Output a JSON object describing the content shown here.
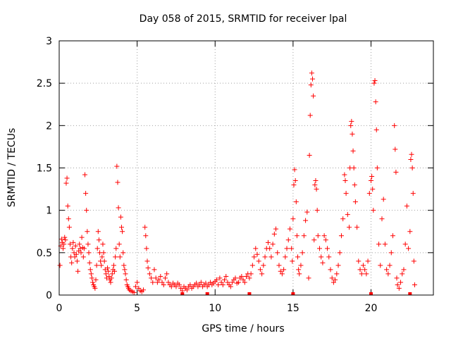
{
  "chart_data": {
    "type": "scatter",
    "title": "Day 058 of 2015, SRMTID for receiver lpal",
    "xlabel": "GPS time / hours",
    "ylabel": "SRMTID / TECUs",
    "xlim": [
      0,
      24
    ],
    "ylim": [
      0,
      3
    ],
    "xticks": [
      0,
      5,
      10,
      15,
      20
    ],
    "xtick_labels": [
      "0",
      "5",
      "10",
      "15",
      "20"
    ],
    "yticks": [
      0,
      0.5,
      1,
      1.5,
      2,
      2.5,
      3
    ],
    "ytick_labels": [
      "0",
      "0.5",
      "1",
      "1.5",
      "2",
      "2.5",
      "3"
    ],
    "grid": true,
    "marker": "+",
    "series_color": "#ff0000",
    "gap_marker_times": [
      7.9,
      9.5,
      12.2,
      15.0,
      20.0,
      22.5
    ],
    "series": [
      {
        "name": "SRMTID",
        "points": [
          [
            0.05,
            0.35
          ],
          [
            0.1,
            0.58
          ],
          [
            0.15,
            0.66
          ],
          [
            0.2,
            0.62
          ],
          [
            0.25,
            0.55
          ],
          [
            0.3,
            0.6
          ],
          [
            0.35,
            0.68
          ],
          [
            0.4,
            0.65
          ],
          [
            0.45,
            1.32
          ],
          [
            0.5,
            1.38
          ],
          [
            0.55,
            1.05
          ],
          [
            0.6,
            0.9
          ],
          [
            0.65,
            0.8
          ],
          [
            0.7,
            0.6
          ],
          [
            0.75,
            0.45
          ],
          [
            0.8,
            0.38
          ],
          [
            0.85,
            0.55
          ],
          [
            0.9,
            0.62
          ],
          [
            0.95,
            0.5
          ],
          [
            1.0,
            0.45
          ],
          [
            1.05,
            0.58
          ],
          [
            1.1,
            0.48
          ],
          [
            1.15,
            0.4
          ],
          [
            1.2,
            0.28
          ],
          [
            1.25,
            0.52
          ],
          [
            1.3,
            0.6
          ],
          [
            1.35,
            0.55
          ],
          [
            1.4,
            0.5
          ],
          [
            1.45,
            0.68
          ],
          [
            1.5,
            0.56
          ],
          [
            1.55,
            0.45
          ],
          [
            1.6,
            0.55
          ],
          [
            1.65,
            1.42
          ],
          [
            1.7,
            1.2
          ],
          [
            1.75,
            1.0
          ],
          [
            1.8,
            0.75
          ],
          [
            1.85,
            0.6
          ],
          [
            1.9,
            0.5
          ],
          [
            1.95,
            0.38
          ],
          [
            2.0,
            0.3
          ],
          [
            2.05,
            0.25
          ],
          [
            2.1,
            0.2
          ],
          [
            2.15,
            0.15
          ],
          [
            2.2,
            0.12
          ],
          [
            2.25,
            0.1
          ],
          [
            2.3,
            0.08
          ],
          [
            2.35,
            0.18
          ],
          [
            2.4,
            0.35
          ],
          [
            2.45,
            0.55
          ],
          [
            2.5,
            0.75
          ],
          [
            2.55,
            0.65
          ],
          [
            2.6,
            0.5
          ],
          [
            2.65,
            0.4
          ],
          [
            2.7,
            0.35
          ],
          [
            2.75,
            0.45
          ],
          [
            2.8,
            0.6
          ],
          [
            2.85,
            0.5
          ],
          [
            2.9,
            0.4
          ],
          [
            2.95,
            0.3
          ],
          [
            3.0,
            0.25
          ],
          [
            3.05,
            0.2
          ],
          [
            3.1,
            0.32
          ],
          [
            3.15,
            0.28
          ],
          [
            3.2,
            0.22
          ],
          [
            3.25,
            0.18
          ],
          [
            3.3,
            0.15
          ],
          [
            3.35,
            0.2
          ],
          [
            3.4,
            0.25
          ],
          [
            3.45,
            0.3
          ],
          [
            3.5,
            0.35
          ],
          [
            3.55,
            0.28
          ],
          [
            3.6,
            0.45
          ],
          [
            3.65,
            0.55
          ],
          [
            3.7,
            1.52
          ],
          [
            3.75,
            1.33
          ],
          [
            3.8,
            1.03
          ],
          [
            3.85,
            0.6
          ],
          [
            3.9,
            0.45
          ],
          [
            3.95,
            0.92
          ],
          [
            4.0,
            0.8
          ],
          [
            4.05,
            0.75
          ],
          [
            4.1,
            0.5
          ],
          [
            4.15,
            0.35
          ],
          [
            4.2,
            0.3
          ],
          [
            4.25,
            0.25
          ],
          [
            4.3,
            0.18
          ],
          [
            4.35,
            0.12
          ],
          [
            4.4,
            0.1
          ],
          [
            4.45,
            0.08
          ],
          [
            4.5,
            0.06
          ],
          [
            4.6,
            0.05
          ],
          [
            4.7,
            0.04
          ],
          [
            4.8,
            0.03
          ],
          [
            4.9,
            0.1
          ],
          [
            5.0,
            0.15
          ],
          [
            5.1,
            0.08
          ],
          [
            5.2,
            0.05
          ],
          [
            5.3,
            0.04
          ],
          [
            5.4,
            0.06
          ],
          [
            5.5,
            0.8
          ],
          [
            5.55,
            0.7
          ],
          [
            5.6,
            0.55
          ],
          [
            5.65,
            0.4
          ],
          [
            5.7,
            0.32
          ],
          [
            5.8,
            0.25
          ],
          [
            5.9,
            0.2
          ],
          [
            6.0,
            0.15
          ],
          [
            6.1,
            0.3
          ],
          [
            6.2,
            0.2
          ],
          [
            6.3,
            0.15
          ],
          [
            6.4,
            0.18
          ],
          [
            6.5,
            0.22
          ],
          [
            6.6,
            0.15
          ],
          [
            6.7,
            0.12
          ],
          [
            6.8,
            0.2
          ],
          [
            6.9,
            0.25
          ],
          [
            7.0,
            0.15
          ],
          [
            7.1,
            0.12
          ],
          [
            7.2,
            0.1
          ],
          [
            7.3,
            0.14
          ],
          [
            7.4,
            0.12
          ],
          [
            7.5,
            0.1
          ],
          [
            7.6,
            0.14
          ],
          [
            7.7,
            0.12
          ],
          [
            7.8,
            0.08
          ],
          [
            7.9,
            0.05
          ],
          [
            8.0,
            0.1
          ],
          [
            8.1,
            0.08
          ],
          [
            8.2,
            0.06
          ],
          [
            8.3,
            0.1
          ],
          [
            8.4,
            0.12
          ],
          [
            8.5,
            0.08
          ],
          [
            8.6,
            0.1
          ],
          [
            8.7,
            0.12
          ],
          [
            8.8,
            0.14
          ],
          [
            8.9,
            0.1
          ],
          [
            9.0,
            0.12
          ],
          [
            9.1,
            0.15
          ],
          [
            9.2,
            0.1
          ],
          [
            9.3,
            0.12
          ],
          [
            9.4,
            0.14
          ],
          [
            9.5,
            0.1
          ],
          [
            9.6,
            0.12
          ],
          [
            9.7,
            0.15
          ],
          [
            9.8,
            0.12
          ],
          [
            9.9,
            0.14
          ],
          [
            10.0,
            0.16
          ],
          [
            10.1,
            0.18
          ],
          [
            10.2,
            0.12
          ],
          [
            10.3,
            0.2
          ],
          [
            10.4,
            0.15
          ],
          [
            10.5,
            0.12
          ],
          [
            10.6,
            0.18
          ],
          [
            10.7,
            0.22
          ],
          [
            10.8,
            0.15
          ],
          [
            10.9,
            0.12
          ],
          [
            11.0,
            0.1
          ],
          [
            11.1,
            0.15
          ],
          [
            11.2,
            0.18
          ],
          [
            11.3,
            0.2
          ],
          [
            11.4,
            0.14
          ],
          [
            11.5,
            0.15
          ],
          [
            11.6,
            0.2
          ],
          [
            11.7,
            0.22
          ],
          [
            11.8,
            0.18
          ],
          [
            11.9,
            0.15
          ],
          [
            12.0,
            0.22
          ],
          [
            12.1,
            0.25
          ],
          [
            12.2,
            0.2
          ],
          [
            12.3,
            0.25
          ],
          [
            12.4,
            0.35
          ],
          [
            12.5,
            0.45
          ],
          [
            12.6,
            0.55
          ],
          [
            12.7,
            0.48
          ],
          [
            12.8,
            0.4
          ],
          [
            12.9,
            0.3
          ],
          [
            13.0,
            0.25
          ],
          [
            13.1,
            0.35
          ],
          [
            13.2,
            0.45
          ],
          [
            13.3,
            0.55
          ],
          [
            13.4,
            0.62
          ],
          [
            13.5,
            0.55
          ],
          [
            13.6,
            0.45
          ],
          [
            13.7,
            0.6
          ],
          [
            13.8,
            0.72
          ],
          [
            13.9,
            0.78
          ],
          [
            14.0,
            0.5
          ],
          [
            14.1,
            0.35
          ],
          [
            14.2,
            0.28
          ],
          [
            14.3,
            0.25
          ],
          [
            14.4,
            0.3
          ],
          [
            14.5,
            0.45
          ],
          [
            14.6,
            0.55
          ],
          [
            14.7,
            0.65
          ],
          [
            14.8,
            0.78
          ],
          [
            14.9,
            0.55
          ],
          [
            14.95,
            0.4
          ],
          [
            15.0,
            0.9
          ],
          [
            15.05,
            1.3
          ],
          [
            15.1,
            1.48
          ],
          [
            15.15,
            1.35
          ],
          [
            15.2,
            1.1
          ],
          [
            15.25,
            0.7
          ],
          [
            15.3,
            0.45
          ],
          [
            15.35,
            0.3
          ],
          [
            15.4,
            0.25
          ],
          [
            15.5,
            0.35
          ],
          [
            15.6,
            0.5
          ],
          [
            15.7,
            0.7
          ],
          [
            15.8,
            0.88
          ],
          [
            15.9,
            0.98
          ],
          [
            16.0,
            0.2
          ],
          [
            16.05,
            1.65
          ],
          [
            16.1,
            2.12
          ],
          [
            16.15,
            2.48
          ],
          [
            16.2,
            2.62
          ],
          [
            16.25,
            2.55
          ],
          [
            16.3,
            2.35
          ],
          [
            16.35,
            0.65
          ],
          [
            16.4,
            1.3
          ],
          [
            16.45,
            1.35
          ],
          [
            16.5,
            1.25
          ],
          [
            16.55,
            1.0
          ],
          [
            16.6,
            0.7
          ],
          [
            16.7,
            0.55
          ],
          [
            16.8,
            0.45
          ],
          [
            16.9,
            0.38
          ],
          [
            17.0,
            0.7
          ],
          [
            17.1,
            0.65
          ],
          [
            17.2,
            0.55
          ],
          [
            17.3,
            0.45
          ],
          [
            17.4,
            0.3
          ],
          [
            17.5,
            0.2
          ],
          [
            17.6,
            0.15
          ],
          [
            17.7,
            0.18
          ],
          [
            17.8,
            0.25
          ],
          [
            17.9,
            0.35
          ],
          [
            18.0,
            0.5
          ],
          [
            18.1,
            0.7
          ],
          [
            18.2,
            0.9
          ],
          [
            18.3,
            1.42
          ],
          [
            18.35,
            1.35
          ],
          [
            18.4,
            1.2
          ],
          [
            18.5,
            0.95
          ],
          [
            18.6,
            0.8
          ],
          [
            18.65,
            1.5
          ],
          [
            18.7,
            2.0
          ],
          [
            18.75,
            2.05
          ],
          [
            18.8,
            1.9
          ],
          [
            18.85,
            1.7
          ],
          [
            18.9,
            1.5
          ],
          [
            18.95,
            1.3
          ],
          [
            19.0,
            1.1
          ],
          [
            19.1,
            0.8
          ],
          [
            19.2,
            0.4
          ],
          [
            19.3,
            0.3
          ],
          [
            19.4,
            0.25
          ],
          [
            19.5,
            0.35
          ],
          [
            19.6,
            0.3
          ],
          [
            19.7,
            0.25
          ],
          [
            19.8,
            0.4
          ],
          [
            19.9,
            1.2
          ],
          [
            20.0,
            1.35
          ],
          [
            20.05,
            1.4
          ],
          [
            20.1,
            1.25
          ],
          [
            20.15,
            1.0
          ],
          [
            20.2,
            2.5
          ],
          [
            20.25,
            2.53
          ],
          [
            20.3,
            2.28
          ],
          [
            20.35,
            1.95
          ],
          [
            20.4,
            1.5
          ],
          [
            20.5,
            0.6
          ],
          [
            20.6,
            0.35
          ],
          [
            20.7,
            0.9
          ],
          [
            20.8,
            1.13
          ],
          [
            20.9,
            0.6
          ],
          [
            21.0,
            0.3
          ],
          [
            21.1,
            0.25
          ],
          [
            21.2,
            0.35
          ],
          [
            21.3,
            0.5
          ],
          [
            21.4,
            0.7
          ],
          [
            21.5,
            2.0
          ],
          [
            21.55,
            1.72
          ],
          [
            21.6,
            1.45
          ],
          [
            21.65,
            0.2
          ],
          [
            21.7,
            0.12
          ],
          [
            21.8,
            0.08
          ],
          [
            21.9,
            0.15
          ],
          [
            22.0,
            0.25
          ],
          [
            22.1,
            0.3
          ],
          [
            22.2,
            0.6
          ],
          [
            22.3,
            1.05
          ],
          [
            22.4,
            0.55
          ],
          [
            22.5,
            0.75
          ],
          [
            22.55,
            1.6
          ],
          [
            22.6,
            1.66
          ],
          [
            22.65,
            1.5
          ],
          [
            22.7,
            1.2
          ],
          [
            22.75,
            0.4
          ],
          [
            22.8,
            0.12
          ]
        ]
      }
    ]
  }
}
